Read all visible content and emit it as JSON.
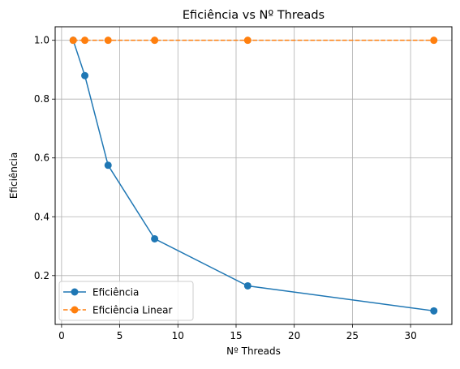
{
  "chart_data": {
    "type": "line",
    "title": "Eficiência vs Nº Threads",
    "xlabel": "Nº Threads",
    "ylabel": "Eficiência",
    "x": [
      1,
      2,
      4,
      8,
      16,
      32
    ],
    "xlim": [
      -0.55,
      33.55
    ],
    "ylim": [
      0.034,
      1.046
    ],
    "xticks": [
      0,
      5,
      10,
      15,
      20,
      25,
      30
    ],
    "xtick_labels": [
      "0",
      "5",
      "10",
      "15",
      "20",
      "25",
      "30"
    ],
    "yticks": [
      0.2,
      0.4,
      0.6,
      0.8,
      1.0
    ],
    "ytick_labels": [
      "0.2",
      "0.4",
      "0.6",
      "0.8",
      "1.0"
    ],
    "grid": true,
    "legend_position": "lower-left",
    "series": [
      {
        "name": "Eficiência",
        "values": [
          1.0,
          0.88,
          0.575,
          0.325,
          0.165,
          0.08
        ],
        "color": "#1f77b4",
        "linestyle": "solid",
        "marker": "circle"
      },
      {
        "name": "Eficiência Linear",
        "values": [
          1.0,
          1.0,
          1.0,
          1.0,
          1.0,
          1.0
        ],
        "color": "#ff7f0e",
        "linestyle": "dashed",
        "marker": "circle"
      }
    ]
  }
}
